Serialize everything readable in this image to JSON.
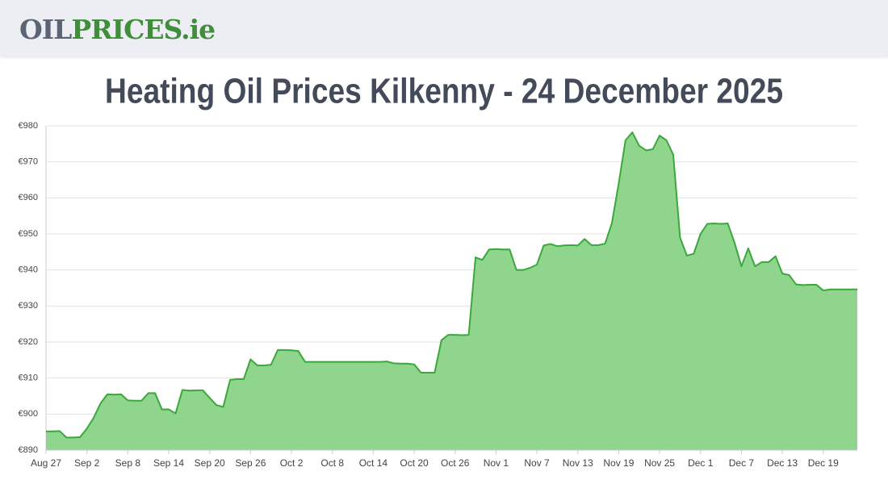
{
  "header": {
    "logo": [
      "OIL",
      "PRICES.ie"
    ]
  },
  "chart_data": {
    "type": "area",
    "title": "Heating Oil Prices Kilkenny - 24 December 2025",
    "categories": [
      "Aug 27",
      null,
      null,
      null,
      null,
      null,
      "Sep 2",
      null,
      null,
      null,
      null,
      null,
      "Sep 8",
      null,
      null,
      null,
      null,
      null,
      "Sep 14",
      null,
      null,
      null,
      null,
      null,
      "Sep 20",
      null,
      null,
      null,
      null,
      null,
      "Sep 26",
      null,
      null,
      null,
      null,
      null,
      "Oct 2",
      null,
      null,
      null,
      null,
      null,
      "Oct 8",
      null,
      null,
      null,
      null,
      null,
      "Oct 14",
      null,
      null,
      null,
      null,
      null,
      "Oct 20",
      null,
      null,
      null,
      null,
      null,
      "Oct 26",
      null,
      null,
      null,
      null,
      null,
      "Nov 1",
      null,
      null,
      null,
      null,
      null,
      "Nov 7",
      null,
      null,
      null,
      null,
      null,
      "Nov 13",
      null,
      null,
      null,
      null,
      null,
      "Nov 19",
      null,
      null,
      null,
      null,
      null,
      "Nov 25",
      null,
      null,
      null,
      null,
      null,
      "Dec 1",
      null,
      null,
      null,
      null,
      null,
      "Dec 7",
      null,
      null,
      null,
      null,
      null,
      "Dec 13",
      null,
      null,
      null,
      null,
      null,
      "Dec 19",
      null,
      null,
      null,
      null,
      null
    ],
    "values": [
      895.2,
      895.2,
      895.3,
      893.5,
      893.5,
      893.6,
      896,
      899,
      903,
      905.5,
      905.4,
      905.5,
      903.8,
      903.7,
      903.7,
      905.8,
      905.8,
      901.3,
      901.3,
      900.2,
      906.7,
      906.5,
      906.6,
      906.6,
      904.5,
      902.5,
      902,
      909.5,
      909.7,
      909.7,
      915.2,
      913.5,
      913.5,
      913.7,
      917.8,
      917.8,
      917.7,
      917.5,
      914.5,
      914.5,
      914.5,
      914.5,
      914.5,
      914.5,
      914.5,
      914.5,
      914.5,
      914.5,
      914.5,
      914.5,
      914.6,
      914.1,
      914,
      914,
      913.8,
      911.5,
      911.5,
      911.5,
      920.5,
      922,
      922,
      921.9,
      922,
      943.5,
      942.8,
      945.7,
      945.8,
      945.7,
      945.7,
      940,
      940,
      940.6,
      941.5,
      946.8,
      947.2,
      946.6,
      946.8,
      946.9,
      946.8,
      948.6,
      946.9,
      946.9,
      947.3,
      953,
      964,
      976,
      978.2,
      974.5,
      973.2,
      973.5,
      977.3,
      976,
      972,
      949,
      944,
      944.5,
      950,
      952.8,
      952.9,
      952.8,
      952.9,
      947.5,
      941,
      946,
      941,
      942.2,
      942.2,
      943.8,
      939,
      938.6,
      936,
      935.8,
      935.9,
      935.9,
      934.3,
      934.6,
      934.6,
      934.6,
      934.6,
      934.6
    ],
    "color": "#3aa83a",
    "fill": "#90d58e",
    "ylim": [
      890,
      980
    ],
    "yticks": [
      {
        "value": 890,
        "label": "€890"
      },
      {
        "value": 900,
        "label": "€900"
      },
      {
        "value": 910,
        "label": "€910"
      },
      {
        "value": 920,
        "label": "€920"
      },
      {
        "value": 930,
        "label": "€930"
      },
      {
        "value": 940,
        "label": "€940"
      },
      {
        "value": 950,
        "label": "€950"
      },
      {
        "value": 960,
        "label": "€960"
      },
      {
        "value": 970,
        "label": "€970"
      },
      {
        "value": 980,
        "label": "€980"
      }
    ],
    "grid": true
  }
}
